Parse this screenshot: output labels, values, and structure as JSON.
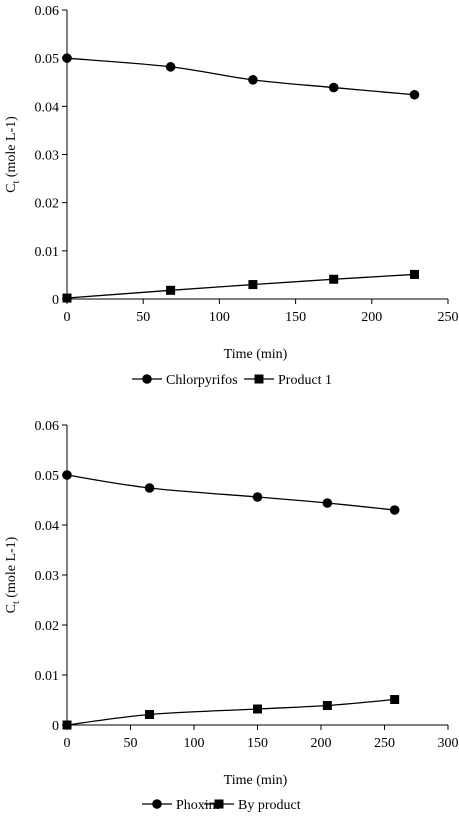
{
  "chart_data": [
    {
      "type": "line",
      "xlabel": "Time (min)",
      "ylabel_main": "C",
      "ylabel_sub": "t",
      "ylabel_rest": " (mole L-1)",
      "xlim": [
        0,
        250
      ],
      "ylim": [
        0,
        0.06
      ],
      "x_ticks": [
        "0",
        "50",
        "100",
        "150",
        "200",
        "250"
      ],
      "y_ticks": [
        "0",
        "0.01",
        "0.02",
        "0.03",
        "0.04",
        "0.05",
        "0.06"
      ],
      "grid": false,
      "legend": "bottom",
      "series": [
        {
          "name": "Chlorpyrifos",
          "marker": "circle",
          "x": [
            0,
            68,
            122,
            175,
            228
          ],
          "y": [
            0.05,
            0.0482,
            0.0455,
            0.0439,
            0.0424
          ]
        },
        {
          "name": "Product 1",
          "marker": "square",
          "x": [
            0,
            68,
            122,
            175,
            228
          ],
          "y": [
            0.0002,
            0.0018,
            0.003,
            0.0041,
            0.0051
          ]
        }
      ]
    },
    {
      "type": "line",
      "xlabel": "Time (min)",
      "ylabel_main": "C",
      "ylabel_sub": "t",
      "ylabel_rest": " (mole L-1)",
      "xlim": [
        0,
        300
      ],
      "ylim": [
        0,
        0.06
      ],
      "x_ticks": [
        "0",
        "50",
        "100",
        "150",
        "200",
        "250",
        "300"
      ],
      "y_ticks": [
        "0",
        "0.01",
        "0.02",
        "0.03",
        "0.04",
        "0.05",
        "0.06"
      ],
      "grid": false,
      "legend": "bottom",
      "series": [
        {
          "name": "Phoxim",
          "marker": "circle",
          "x": [
            0,
            65,
            150,
            205,
            258
          ],
          "y": [
            0.05,
            0.0474,
            0.0456,
            0.0444,
            0.043
          ]
        },
        {
          "name": "By product",
          "marker": "square",
          "x": [
            0,
            65,
            150,
            205,
            258
          ],
          "y": [
            0.0,
            0.0021,
            0.0032,
            0.0039,
            0.0051
          ]
        }
      ]
    }
  ]
}
